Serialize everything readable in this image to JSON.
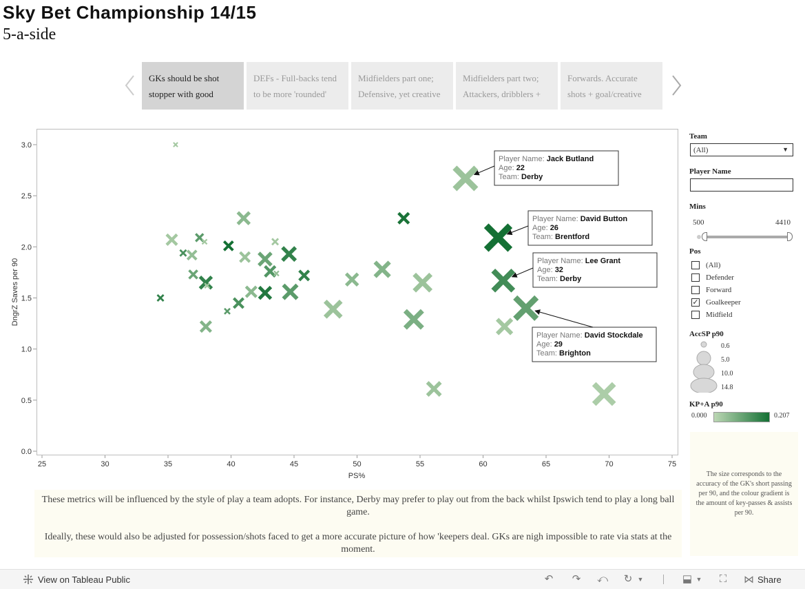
{
  "header": {
    "title": "Sky Bet Championship 14/15",
    "subtitle": "5-a-side"
  },
  "story": {
    "tabs": [
      {
        "line1": "GKs should be shot",
        "line2": "stopper with good",
        "active": true
      },
      {
        "line1": "DEFs - Full-backs tend",
        "line2": "to be more 'rounded'",
        "active": false
      },
      {
        "line1": "Midfielders part one;",
        "line2": "Defensive, yet creative",
        "active": false
      },
      {
        "line1": "Midfielders part two;",
        "line2": "Attackers, dribblers +",
        "active": false
      },
      {
        "line1": "Forwards. Accurate",
        "line2": "shots + goal/creative",
        "active": false
      }
    ]
  },
  "chart_data": {
    "type": "scatter",
    "xlabel": "PS%",
    "ylabel": "DngrZ Saves per 90",
    "xlim": [
      25,
      75
    ],
    "ylim": [
      0,
      3.2
    ],
    "xticks": [
      "25",
      "30",
      "35",
      "40",
      "45",
      "50",
      "55",
      "60",
      "65",
      "70",
      "75"
    ],
    "yticks": [
      "0.0",
      "0.5",
      "1.0",
      "1.5",
      "2.0",
      "2.5",
      "3.0"
    ],
    "size_field": "AccSP p90",
    "color_field": "KP+A p90",
    "points": [
      {
        "x": 35.6,
        "y": 3.0,
        "size": 0.6,
        "color": 0.03
      },
      {
        "x": 35.3,
        "y": 2.07,
        "size": 5.0,
        "color": 0.03
      },
      {
        "x": 37.5,
        "y": 2.09,
        "size": 3.0,
        "color": 0.12
      },
      {
        "x": 37.9,
        "y": 2.05,
        "size": 1.0,
        "color": 0.03
      },
      {
        "x": 36.9,
        "y": 1.92,
        "size": 4.0,
        "color": 0.05
      },
      {
        "x": 36.2,
        "y": 1.94,
        "size": 2.0,
        "color": 0.14
      },
      {
        "x": 39.8,
        "y": 2.01,
        "size": 4.0,
        "color": 0.207
      },
      {
        "x": 41.0,
        "y": 2.28,
        "size": 6.0,
        "color": 0.06
      },
      {
        "x": 41.1,
        "y": 1.9,
        "size": 4.5,
        "color": 0.04
      },
      {
        "x": 43.5,
        "y": 2.05,
        "size": 2.0,
        "color": 0.03
      },
      {
        "x": 37.0,
        "y": 1.73,
        "size": 3.5,
        "color": 0.1
      },
      {
        "x": 38.0,
        "y": 1.65,
        "size": 6.0,
        "color": 0.17
      },
      {
        "x": 38.1,
        "y": 1.62,
        "size": 1.0,
        "color": 0.03
      },
      {
        "x": 42.7,
        "y": 1.88,
        "size": 6.5,
        "color": 0.1
      },
      {
        "x": 43.1,
        "y": 1.76,
        "size": 5.0,
        "color": 0.13
      },
      {
        "x": 43.6,
        "y": 1.74,
        "size": 1.0,
        "color": 0.05
      },
      {
        "x": 44.6,
        "y": 1.93,
        "size": 7.0,
        "color": 0.17
      },
      {
        "x": 45.8,
        "y": 1.72,
        "size": 4.5,
        "color": 0.17
      },
      {
        "x": 41.6,
        "y": 1.56,
        "size": 5.0,
        "color": 0.06
      },
      {
        "x": 42.7,
        "y": 1.55,
        "size": 6.0,
        "color": 0.19
      },
      {
        "x": 44.7,
        "y": 1.56,
        "size": 7.5,
        "color": 0.12
      },
      {
        "x": 40.6,
        "y": 1.45,
        "size": 4.5,
        "color": 0.14
      },
      {
        "x": 34.4,
        "y": 1.5,
        "size": 2.0,
        "color": 0.17
      },
      {
        "x": 39.7,
        "y": 1.37,
        "size": 1.5,
        "color": 0.12
      },
      {
        "x": 38.0,
        "y": 1.22,
        "size": 5.0,
        "color": 0.07
      },
      {
        "x": 53.7,
        "y": 2.28,
        "size": 5.0,
        "color": 0.2
      },
      {
        "x": 48.1,
        "y": 1.39,
        "size": 9.0,
        "color": 0.04
      },
      {
        "x": 49.6,
        "y": 1.68,
        "size": 6.0,
        "color": 0.06
      },
      {
        "x": 52.0,
        "y": 1.78,
        "size": 8.0,
        "color": 0.07
      },
      {
        "x": 55.2,
        "y": 1.65,
        "size": 9.5,
        "color": 0.04
      },
      {
        "x": 54.5,
        "y": 1.29,
        "size": 10.0,
        "color": 0.08
      },
      {
        "x": 56.1,
        "y": 0.61,
        "size": 7.0,
        "color": 0.04
      },
      {
        "x": 58.6,
        "y": 2.67,
        "size": 13.0,
        "color": 0.04
      },
      {
        "x": 61.2,
        "y": 2.09,
        "size": 14.8,
        "color": 0.207
      },
      {
        "x": 61.6,
        "y": 1.67,
        "size": 12.0,
        "color": 0.15
      },
      {
        "x": 61.7,
        "y": 1.22,
        "size": 8.0,
        "color": 0.03
      },
      {
        "x": 63.4,
        "y": 1.4,
        "size": 13.0,
        "color": 0.11
      },
      {
        "x": 69.6,
        "y": 0.56,
        "size": 12.0,
        "color": 0.02
      }
    ],
    "tooltips": [
      {
        "name": "Jack Butland",
        "age": "22",
        "team": "Derby",
        "x": 58.6,
        "y": 2.67
      },
      {
        "name": "David Button",
        "age": "26",
        "team": "Brentford",
        "x": 61.2,
        "y": 2.09
      },
      {
        "name": "Lee Grant",
        "age": "32",
        "team": "Derby",
        "x": 61.6,
        "y": 1.67
      },
      {
        "name": "David Stockdale",
        "age": "29",
        "team": "Brighton",
        "x": 63.4,
        "y": 1.4
      }
    ],
    "tooltip_labels": {
      "name": "Player Name:",
      "age": "Age:",
      "team": "Team:"
    },
    "colors": {
      "low": "#bcd7b4",
      "high": "#147034"
    }
  },
  "filters": {
    "team": {
      "label": "Team",
      "value": "(All)"
    },
    "player": {
      "label": "Player  Name",
      "value": ""
    },
    "mins": {
      "label": "Mins",
      "min": "500",
      "max": "4410"
    },
    "pos": {
      "label": "Pos",
      "options": [
        {
          "label": "(All)",
          "checked": false
        },
        {
          "label": "Defender",
          "checked": false
        },
        {
          "label": "Forward",
          "checked": false
        },
        {
          "label": "Goalkeeper",
          "checked": true
        },
        {
          "label": "Midfield",
          "checked": false
        }
      ]
    }
  },
  "legends": {
    "size": {
      "label": "AccSP  p90",
      "values": [
        "0.6",
        "5.0",
        "10.0",
        "14.8"
      ]
    },
    "color": {
      "label": "KP+A  p90",
      "min": "0.000",
      "max": "0.207"
    }
  },
  "notes": {
    "side": "The size corresponds to the accuracy of the GK's short passing per 90, and the colour gradient is the amount of key-passes & assists per 90.",
    "para1": "These metrics will be influenced by the style of play a team adopts. For instance, Derby may prefer to play out from the back whilst Ipswich tend to play a long ball game.",
    "para2": "Ideally, these would also be adjusted for possession/shots faced to get a more accurate picture of how 'keepers deal. GKs are nigh impossible to rate via stats at the moment."
  },
  "footer": {
    "view_label": "View on Tableau Public",
    "share_label": "Share"
  }
}
